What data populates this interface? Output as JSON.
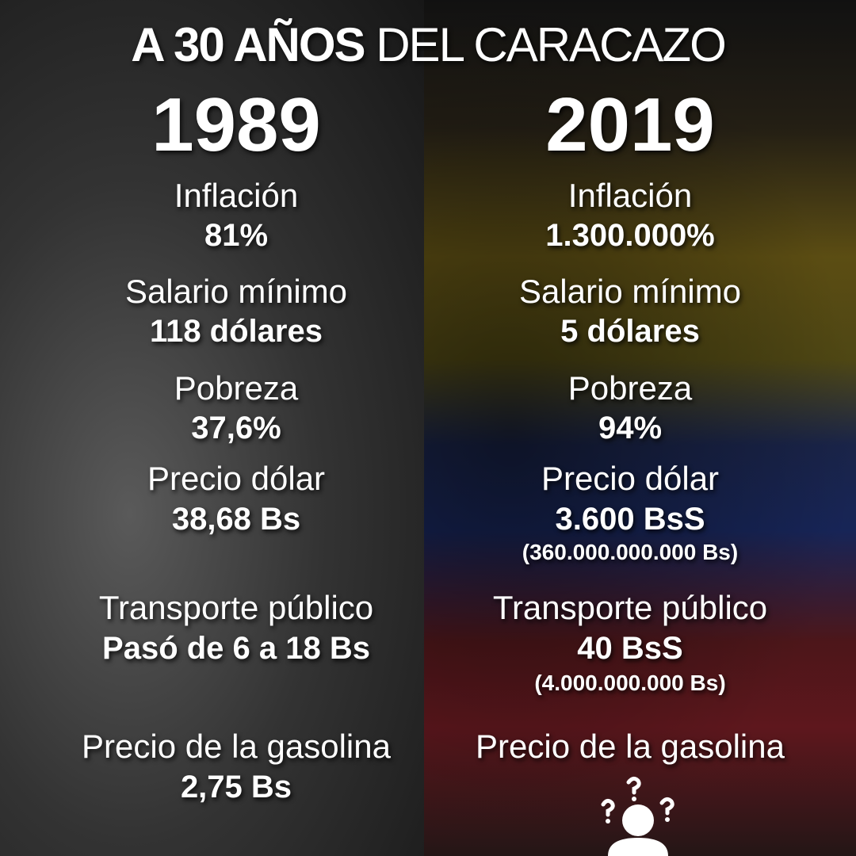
{
  "header": {
    "title_bold": "A 30 AÑOS",
    "title_light": "DEL CARACAZO"
  },
  "columns": [
    {
      "year": "1989",
      "items": [
        {
          "label": "Inflación",
          "value": "81%"
        },
        {
          "label": "Salario mínimo",
          "value": "118 dólares"
        },
        {
          "label": "Pobreza",
          "value": "37,6%"
        },
        {
          "label": "Precio dólar",
          "value": "38,68 Bs"
        },
        {
          "label": "Transporte público",
          "value": "Pasó de 6 a 18 Bs"
        },
        {
          "label": "Precio de la gasolina",
          "value": "2,75 Bs"
        }
      ]
    },
    {
      "year": "2019",
      "items": [
        {
          "label": "Inflación",
          "value": "1.300.000%"
        },
        {
          "label": "Salario mínimo",
          "value": "5 dólares"
        },
        {
          "label": "Pobreza",
          "value": "94%"
        },
        {
          "label": "Precio dólar",
          "value": "3.600 BsS",
          "note": "(360.000.000.000 Bs)"
        },
        {
          "label": "Transporte público",
          "value": "40 BsS",
          "note": "(4.000.000.000 Bs)"
        },
        {
          "label": "Precio de la gasolina"
        }
      ]
    }
  ]
}
